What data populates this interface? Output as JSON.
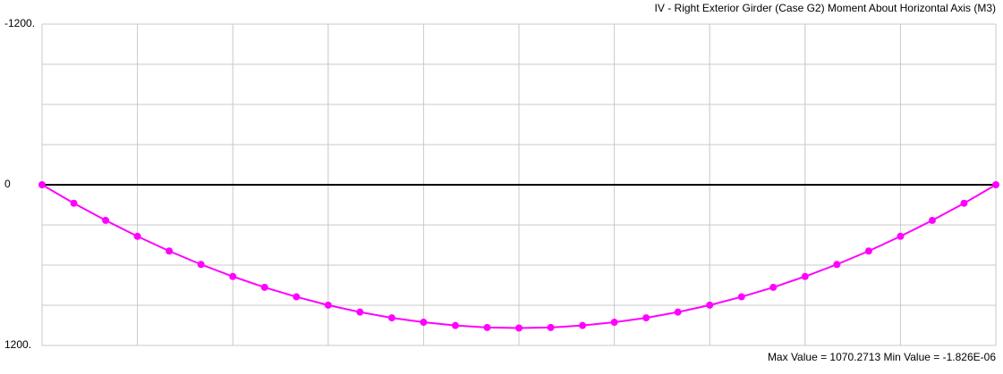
{
  "chart_data": {
    "type": "line",
    "title": "IV - Right Exterior Girder   (Case G2)   Moment About Horizontal Axis  (M3)",
    "footer": "Max Value = 1070.2713    Min Value = -1.826E-06",
    "x": [
      0,
      1,
      2,
      3,
      4,
      5,
      6,
      7,
      8,
      9,
      10,
      11,
      12,
      13,
      14,
      15,
      16,
      17,
      18,
      19,
      20,
      21,
      22,
      23,
      24,
      25,
      26,
      27,
      28,
      29,
      30
    ],
    "series": [
      {
        "color": "#ff00ff",
        "values": [
          0,
          138,
          266,
          385,
          495,
          595,
          685,
          766,
          837,
          899,
          951,
          994,
          1027,
          1051,
          1066,
          1070,
          1066,
          1051,
          1027,
          994,
          951,
          899,
          837,
          766,
          685,
          595,
          495,
          385,
          266,
          138,
          0
        ]
      }
    ],
    "xlim": [
      0,
      30
    ],
    "xgrid": [
      0,
      3,
      6,
      9,
      12,
      15,
      18,
      21,
      24,
      27,
      30
    ],
    "ylim": [
      -1200,
      1200
    ],
    "y_inverted": true,
    "yticks": [
      {
        "value": -1200,
        "label": "-1200."
      },
      0,
      {
        "value": 1200,
        "label": "1200."
      }
    ],
    "ygrid": [
      -1200,
      -900,
      -600,
      -300,
      0,
      300,
      600,
      900,
      1200
    ],
    "zero_line": 0,
    "grid": true
  }
}
